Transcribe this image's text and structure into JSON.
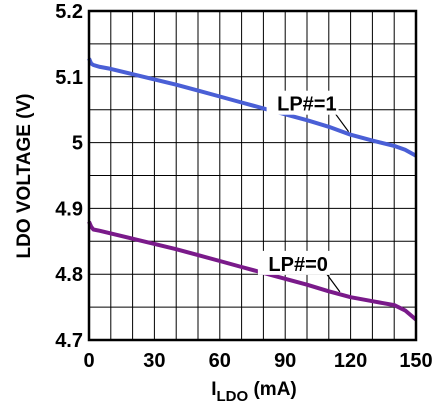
{
  "chart_data": {
    "type": "line",
    "ylabel": "LDO VOLTAGE (V)",
    "xlabel": {
      "main": "I",
      "sub": "LDO",
      "unit": " (mA)"
    },
    "xlim": [
      0,
      150
    ],
    "ylim": [
      4.7,
      5.2
    ],
    "xticks": [
      "0",
      "30",
      "60",
      "90",
      "120",
      "150"
    ],
    "yticks": [
      "4.7",
      "4.8",
      "4.9",
      "5",
      "5.1",
      "5.2"
    ],
    "grid": true,
    "series": [
      {
        "name": "LP#=1",
        "color": "#4a5fd6",
        "x": [
          0,
          1,
          2,
          5,
          10,
          20,
          30,
          40,
          50,
          60,
          70,
          80,
          90,
          100,
          110,
          120,
          130,
          140,
          145,
          150
        ],
        "y": [
          5.128,
          5.12,
          5.118,
          5.115,
          5.112,
          5.104,
          5.096,
          5.088,
          5.079,
          5.07,
          5.061,
          5.052,
          5.043,
          5.034,
          5.024,
          5.012,
          5.003,
          4.995,
          4.989,
          4.98
        ]
      },
      {
        "name": "LP#=0",
        "color": "#7a1a8a",
        "x": [
          0,
          1,
          2,
          5,
          10,
          20,
          30,
          40,
          50,
          60,
          70,
          80,
          90,
          100,
          110,
          120,
          130,
          140,
          145,
          150
        ],
        "y": [
          4.88,
          4.872,
          4.868,
          4.866,
          4.862,
          4.854,
          4.846,
          4.838,
          4.829,
          4.82,
          4.811,
          4.802,
          4.793,
          4.784,
          4.774,
          4.765,
          4.759,
          4.753,
          4.745,
          4.731
        ]
      }
    ],
    "annotations": [
      {
        "text": "LP#=1",
        "series": 0,
        "x": 120
      },
      {
        "text": "LP#=0",
        "series": 1,
        "x": 116
      }
    ]
  }
}
